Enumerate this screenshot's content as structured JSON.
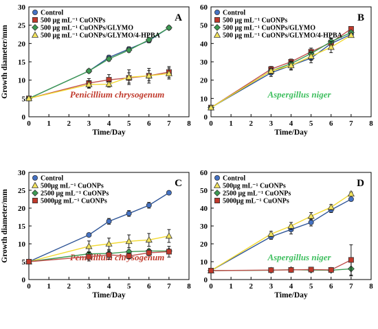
{
  "colors": {
    "control": "#4472c4",
    "cu500": "#c0392b",
    "glymo": "#3d9a52",
    "hpba": "#f2e35d",
    "line_control": "#2f5597",
    "line_cu500": "#c0504d",
    "line_glymo": "#3d9a52",
    "line_hpba": "#f2d930",
    "anno_red": "#c0392b",
    "anno_green": "#3fbf5f"
  },
  "shared": {
    "ylabel": "Growth diameter/mm",
    "xlabel": "Time/Day"
  },
  "chart_data": [
    {
      "panel": "A",
      "type": "line",
      "annotation": "Penicillium chrysogenum",
      "annotation_color": "#c0392b",
      "xlim": [
        0,
        8
      ],
      "ylim": [
        0,
        30
      ],
      "xticks": [
        0,
        1,
        2,
        3,
        4,
        5,
        6,
        7,
        8
      ],
      "yticks": [
        0,
        5,
        10,
        15,
        20,
        25,
        30
      ],
      "xlabel": "Time/Day",
      "ylabel": "Growth diameter/mm",
      "legend_pos": "top-left",
      "series": [
        {
          "name": "Control",
          "marker": "circle",
          "color": "#4472c4",
          "line": "#2f5597",
          "x": [
            0,
            3,
            4,
            5,
            6,
            7
          ],
          "y": [
            5,
            12.5,
            16.2,
            18.5,
            20.8,
            24.3
          ],
          "err": [
            0.3,
            0.3,
            0.6,
            0.6,
            0.6,
            0.3
          ]
        },
        {
          "name": "500 μg mL⁻¹ CuONPs",
          "marker": "square",
          "color": "#c0392b",
          "line": "#c0504d",
          "x": [
            0,
            3,
            4,
            5,
            6,
            7
          ],
          "y": [
            5,
            9.2,
            10.1,
            10.6,
            11.2,
            12.2
          ],
          "err": [
            0.3,
            1.2,
            1.4,
            1.4,
            1.4,
            1.5
          ]
        },
        {
          "name": "500 μg mL⁻¹ CuONPs/GLYMO",
          "marker": "diamond",
          "color": "#3d9a52",
          "line": "#3d9a52",
          "x": [
            0,
            3,
            4,
            5,
            6,
            7
          ],
          "y": [
            5,
            12.5,
            15.8,
            18.2,
            21.0,
            24.3
          ],
          "err": [
            0.3,
            0.3,
            0.6,
            0.6,
            0.6,
            0.3
          ]
        },
        {
          "name": "500 μg mL⁻¹ CuONPs/GLYMO/4-HPBA",
          "marker": "triangle",
          "color": "#f2e35d",
          "line": "#f2d930",
          "x": [
            0,
            3,
            4,
            5,
            6,
            7
          ],
          "y": [
            5,
            8.8,
            8.9,
            10.8,
            11.2,
            11.8
          ],
          "err": [
            0.3,
            1.0,
            0.8,
            2.0,
            2.0,
            1.5
          ]
        }
      ]
    },
    {
      "panel": "B",
      "type": "line",
      "annotation": "Aspergillus niger",
      "annotation_color": "#3fbf5f",
      "xlim": [
        0,
        8
      ],
      "ylim": [
        0,
        60
      ],
      "xticks": [
        0,
        1,
        2,
        3,
        4,
        5,
        6,
        7,
        8
      ],
      "yticks": [
        0,
        10,
        20,
        30,
        40,
        50,
        60
      ],
      "xlabel": "Time/Day",
      "ylabel": "",
      "legend_pos": "top-left",
      "series": [
        {
          "name": "Control",
          "marker": "circle",
          "color": "#4472c4",
          "line": "#2f5597",
          "x": [
            0,
            3,
            4,
            5,
            6,
            7
          ],
          "y": [
            5,
            24,
            28,
            32,
            40,
            45
          ],
          "err": [
            0.5,
            2,
            2.5,
            2.5,
            3,
            1.5
          ]
        },
        {
          "name": "500 μg mL⁻¹ CuONPs",
          "marker": "square",
          "color": "#c0392b",
          "line": "#c0504d",
          "x": [
            0,
            3,
            4,
            5,
            6,
            7
          ],
          "y": [
            5,
            26,
            30,
            35.5,
            40.5,
            48
          ],
          "err": [
            0.5,
            1.5,
            1.5,
            2,
            2,
            1
          ]
        },
        {
          "name": "500 μg mL⁻¹ CuONPs/GLYMO",
          "marker": "diamond",
          "color": "#3d9a52",
          "line": "#3d9a52",
          "x": [
            0,
            3,
            4,
            5,
            6,
            7
          ],
          "y": [
            5,
            25,
            29,
            34.5,
            41,
            46
          ],
          "err": [
            0.5,
            1.5,
            1.5,
            1.5,
            2,
            1
          ]
        },
        {
          "name": "500 μg mL⁻¹ CuONPs/GLYMO/4-HPBA",
          "marker": "triangle",
          "color": "#f2e35d",
          "line": "#f2d930",
          "x": [
            0,
            3,
            4,
            5,
            6,
            7
          ],
          "y": [
            5,
            25,
            28,
            33,
            38,
            44.5
          ],
          "err": [
            0.5,
            1.5,
            2,
            2,
            3,
            1
          ]
        }
      ]
    },
    {
      "panel": "C",
      "type": "line",
      "annotation": "Penicillium chrysogenum",
      "annotation_color": "#c0392b",
      "xlim": [
        0,
        8
      ],
      "ylim": [
        0,
        30
      ],
      "xticks": [
        0,
        1,
        2,
        3,
        4,
        5,
        6,
        7,
        8
      ],
      "yticks": [
        0,
        5,
        10,
        15,
        20,
        25,
        30
      ],
      "xlabel": "Time/Day",
      "ylabel": "Growth diameter/mm",
      "legend_pos": "top-left",
      "series": [
        {
          "name": "Control",
          "marker": "circle",
          "color": "#4472c4",
          "line": "#2f5597",
          "x": [
            0,
            3,
            4,
            5,
            6,
            7
          ],
          "y": [
            5,
            12.5,
            16.3,
            18.5,
            20.8,
            24.3
          ],
          "err": [
            0.3,
            0.3,
            0.8,
            0.8,
            0.8,
            0.3
          ]
        },
        {
          "name": "500μg mL⁻¹ CuONPs",
          "marker": "triangle",
          "color": "#f2e35d",
          "line": "#f2d930",
          "x": [
            0,
            3,
            4,
            5,
            6,
            7
          ],
          "y": [
            5,
            9.3,
            10.0,
            10.7,
            11.1,
            12.2
          ],
          "err": [
            0.3,
            1.5,
            1.6,
            1.8,
            1.8,
            1.8
          ]
        },
        {
          "name": "2500 μg mL⁻¹ CuONPs",
          "marker": "diamond",
          "color": "#3d9a52",
          "line": "#3d9a52",
          "x": [
            0,
            3,
            4,
            5,
            6,
            7
          ],
          "y": [
            5,
            7.2,
            7.3,
            7.8,
            8.0,
            8.0
          ],
          "err": [
            0.3,
            0.5,
            0.5,
            0.5,
            0.5,
            0.5
          ]
        },
        {
          "name": "5000μg mL⁻¹ CuONPs",
          "marker": "square",
          "color": "#c0392b",
          "line": "#c0504d",
          "x": [
            0,
            3,
            4,
            5,
            6,
            7
          ],
          "y": [
            5,
            6.4,
            6.9,
            6.6,
            7.5,
            7.8
          ],
          "err": [
            0.3,
            1.2,
            1.2,
            0.8,
            0.8,
            1.5
          ]
        }
      ]
    },
    {
      "panel": "D",
      "type": "line",
      "annotation": "Aspergillus niger",
      "annotation_color": "#3fbf5f",
      "xlim": [
        0,
        8
      ],
      "ylim": [
        0,
        60
      ],
      "xticks": [
        0,
        1,
        2,
        3,
        4,
        5,
        6,
        7,
        8
      ],
      "yticks": [
        0,
        10,
        20,
        30,
        40,
        50,
        60
      ],
      "xlabel": "Time/Day",
      "ylabel": "",
      "legend_pos": "top-left",
      "series": [
        {
          "name": "Control",
          "marker": "circle",
          "color": "#4472c4",
          "line": "#2f5597",
          "x": [
            0,
            3,
            4,
            5,
            6,
            7
          ],
          "y": [
            5,
            24,
            28,
            32,
            39,
            45
          ],
          "err": [
            0.5,
            1.5,
            2.5,
            2,
            1.5,
            1
          ]
        },
        {
          "name": "500μg mL⁻¹ CuONPs",
          "marker": "triangle",
          "color": "#f2e35d",
          "line": "#f2d930",
          "x": [
            0,
            3,
            4,
            5,
            6,
            7
          ],
          "y": [
            5,
            25.5,
            30,
            35.5,
            40.5,
            48
          ],
          "err": [
            0.5,
            1.5,
            2,
            2,
            1.5,
            1
          ]
        },
        {
          "name": "2500 μg mL⁻¹ CuONPs",
          "marker": "diamond",
          "color": "#3d9a52",
          "line": "#3d9a52",
          "x": [
            0,
            3,
            4,
            5,
            6,
            7
          ],
          "y": [
            5,
            5.2,
            5.5,
            5.3,
            5.2,
            6.0
          ],
          "err": [
            0.3,
            0.3,
            0.3,
            0.3,
            0.3,
            4.0
          ]
        },
        {
          "name": "5000μg mL⁻¹ CuONPs",
          "marker": "square",
          "color": "#c0392b",
          "line": "#c0504d",
          "x": [
            0,
            3,
            4,
            5,
            6,
            7
          ],
          "y": [
            5,
            5.3,
            5.4,
            5.6,
            5.4,
            11.0
          ],
          "err": [
            0.3,
            0.3,
            0.3,
            0.3,
            0.3,
            8.5
          ]
        }
      ]
    }
  ]
}
